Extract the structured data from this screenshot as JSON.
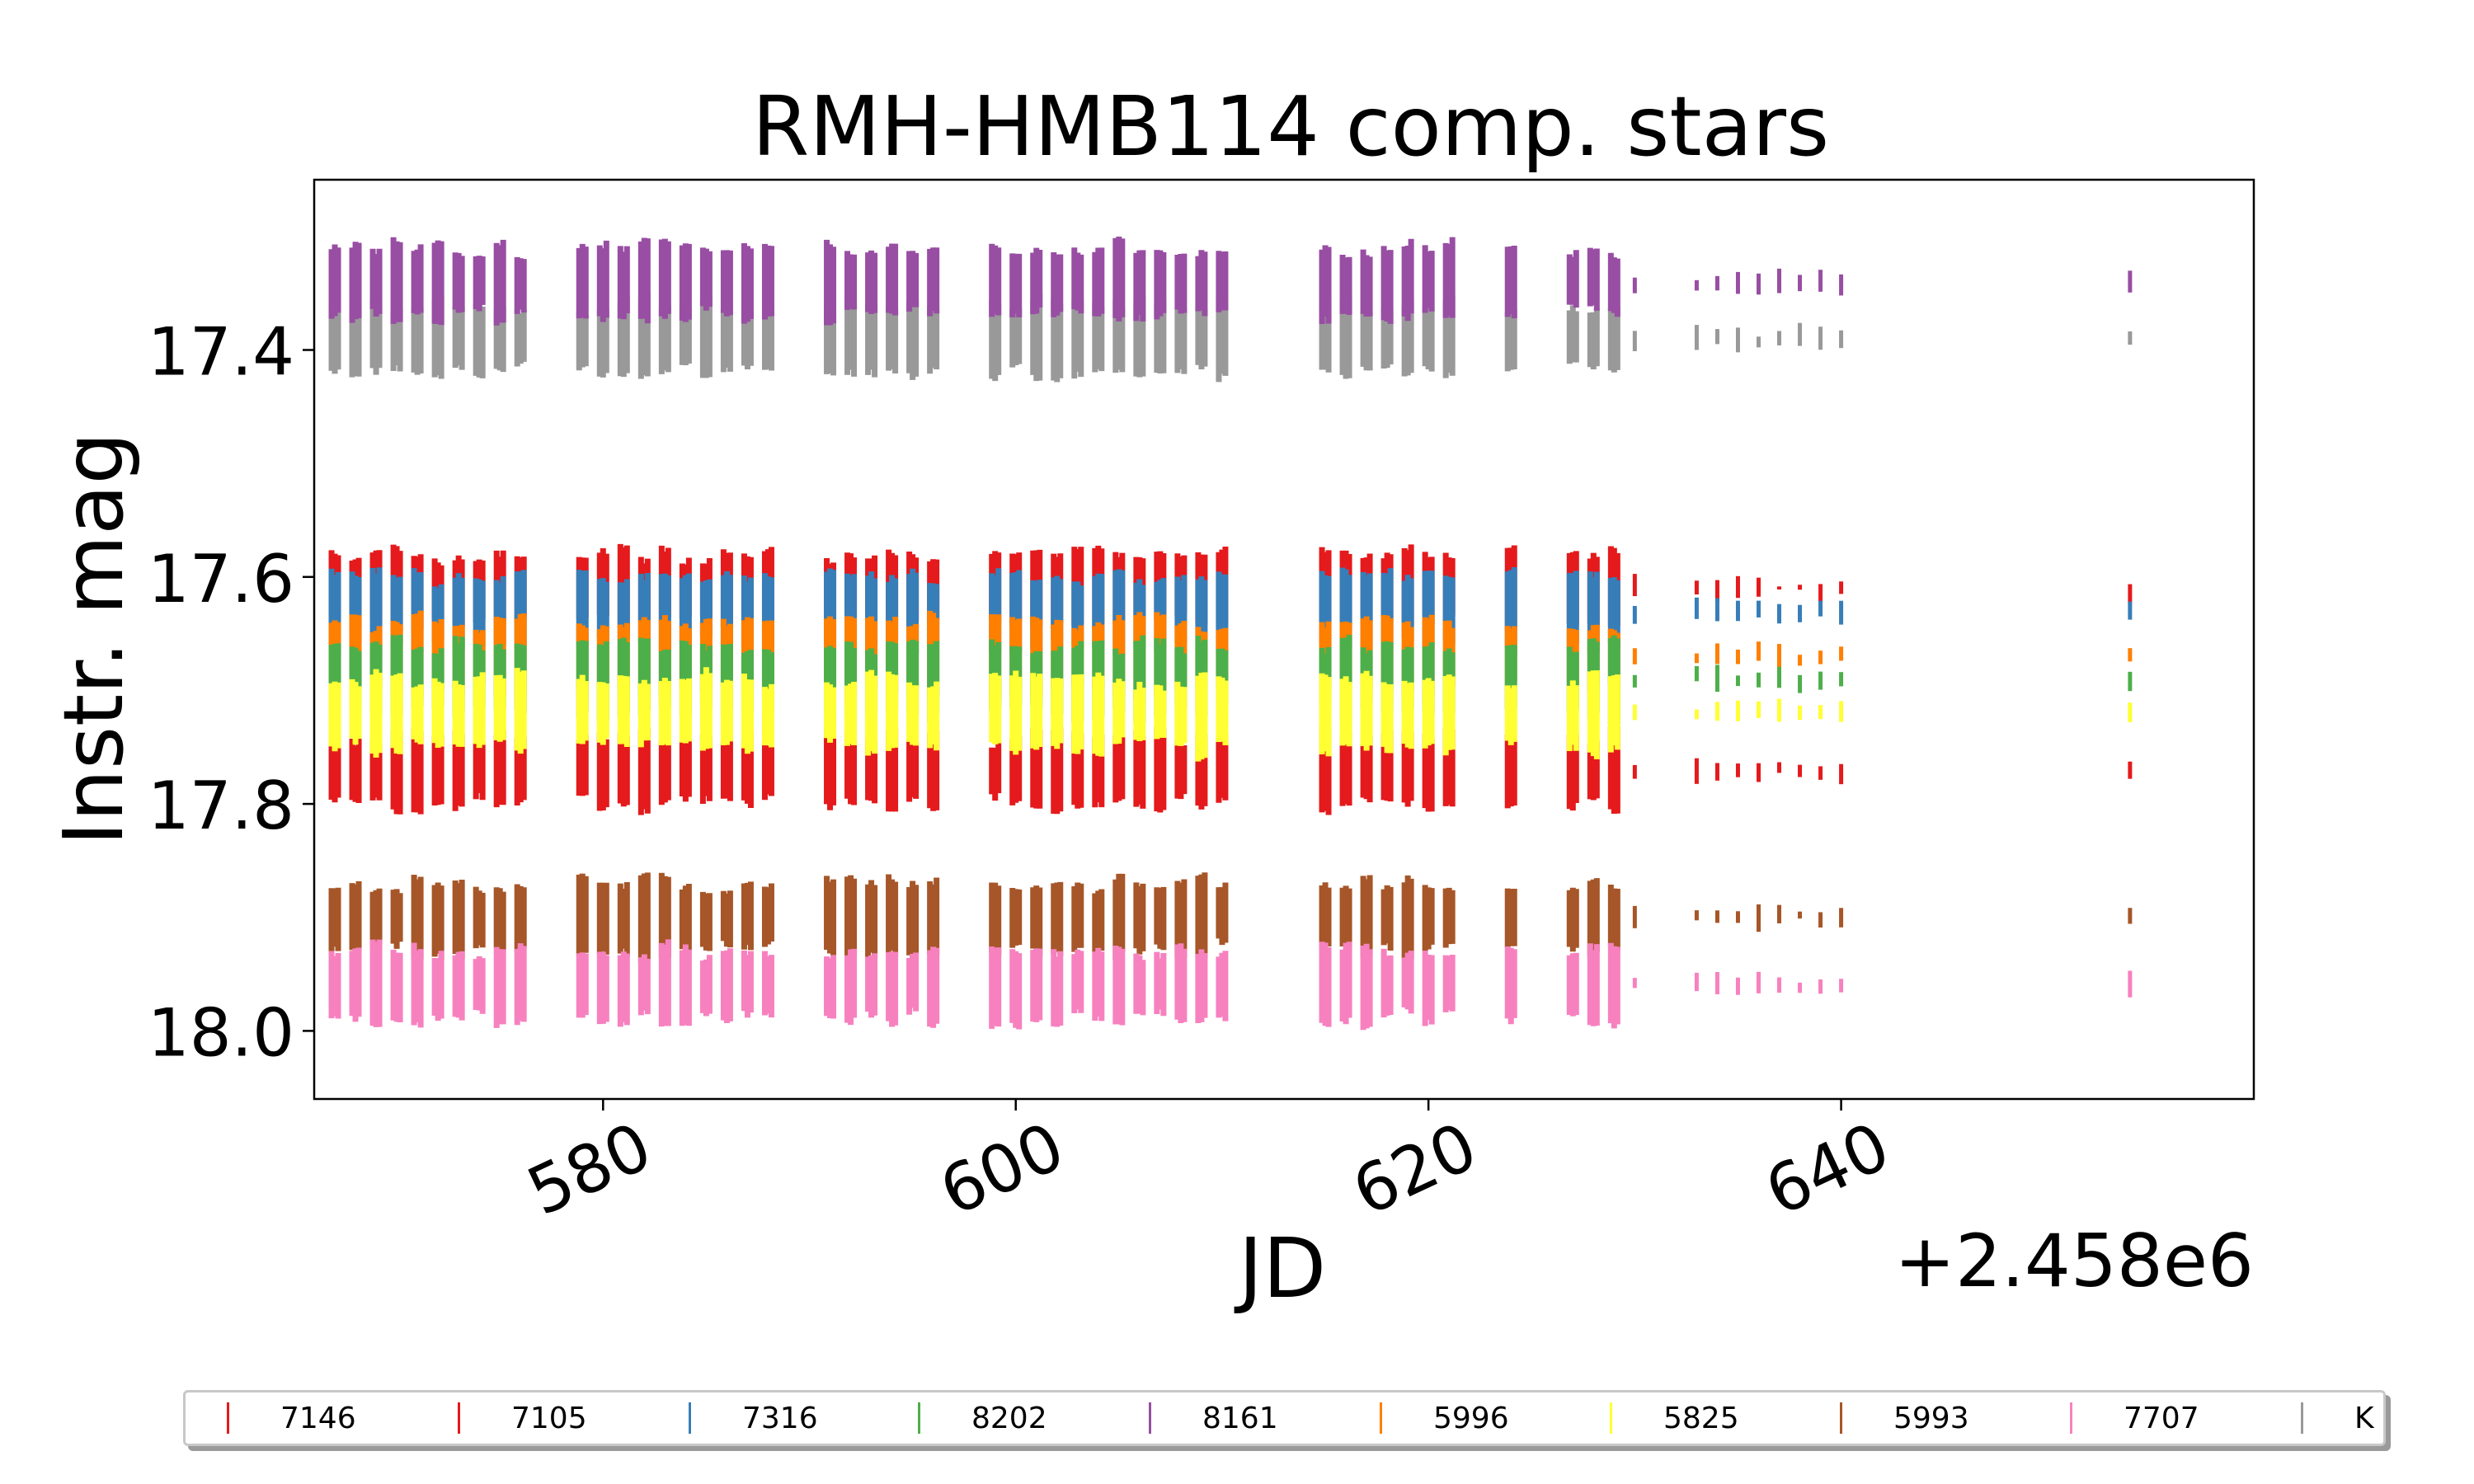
{
  "chart_data": {
    "type": "scatter",
    "title": "RMH-HMB114 comp. stars",
    "xlabel": "JD",
    "ylabel": "Instr. mag",
    "x_offset_label": "+2.458e6",
    "xlim": [
      566.0,
      660.0
    ],
    "ylim": [
      18.06,
      17.25
    ],
    "y_inverted": true,
    "xticks": [
      580,
      600,
      620,
      640
    ],
    "xtick_labels": [
      "580",
      "600",
      "620",
      "640"
    ],
    "yticks": [
      17.4,
      17.6,
      17.8,
      18.0
    ],
    "ytick_labels": [
      "17.4",
      "17.6",
      "17.8",
      "18.0"
    ],
    "grid": false,
    "legend_position": "bottom",
    "observation_nights": [
      567,
      568,
      569,
      570,
      571,
      572,
      573,
      574,
      575,
      576,
      579,
      580,
      581,
      582,
      583,
      584,
      585,
      586,
      587,
      588,
      591,
      592,
      593,
      594,
      595,
      596,
      599,
      600,
      601,
      602,
      603,
      604,
      605,
      606,
      607,
      608,
      609,
      610,
      615,
      616,
      617,
      618,
      619,
      620,
      621,
      624,
      627,
      628,
      629,
      630,
      633,
      634,
      635,
      636,
      637,
      638,
      639,
      640,
      654
    ],
    "series": [
      {
        "name": "7146",
        "color": "#e41a1c",
        "mag": 17.77
      },
      {
        "name": "7105",
        "color": "#e41a1c",
        "mag": 17.61
      },
      {
        "name": "7316",
        "color": "#377eb8",
        "mag": 17.63
      },
      {
        "name": "8202",
        "color": "#4daf4a",
        "mag": 17.69
      },
      {
        "name": "8161",
        "color": "#984ea3",
        "mag": 17.34
      },
      {
        "name": "5996",
        "color": "#ff7f00",
        "mag": 17.67
      },
      {
        "name": "5825",
        "color": "#ffff33",
        "mag": 17.72
      },
      {
        "name": "5993",
        "color": "#a65628",
        "mag": 17.9
      },
      {
        "name": "7707",
        "color": "#f781bf",
        "mag": 17.96
      },
      {
        "name": "K",
        "color": "#999999",
        "mag": 17.39
      }
    ]
  }
}
